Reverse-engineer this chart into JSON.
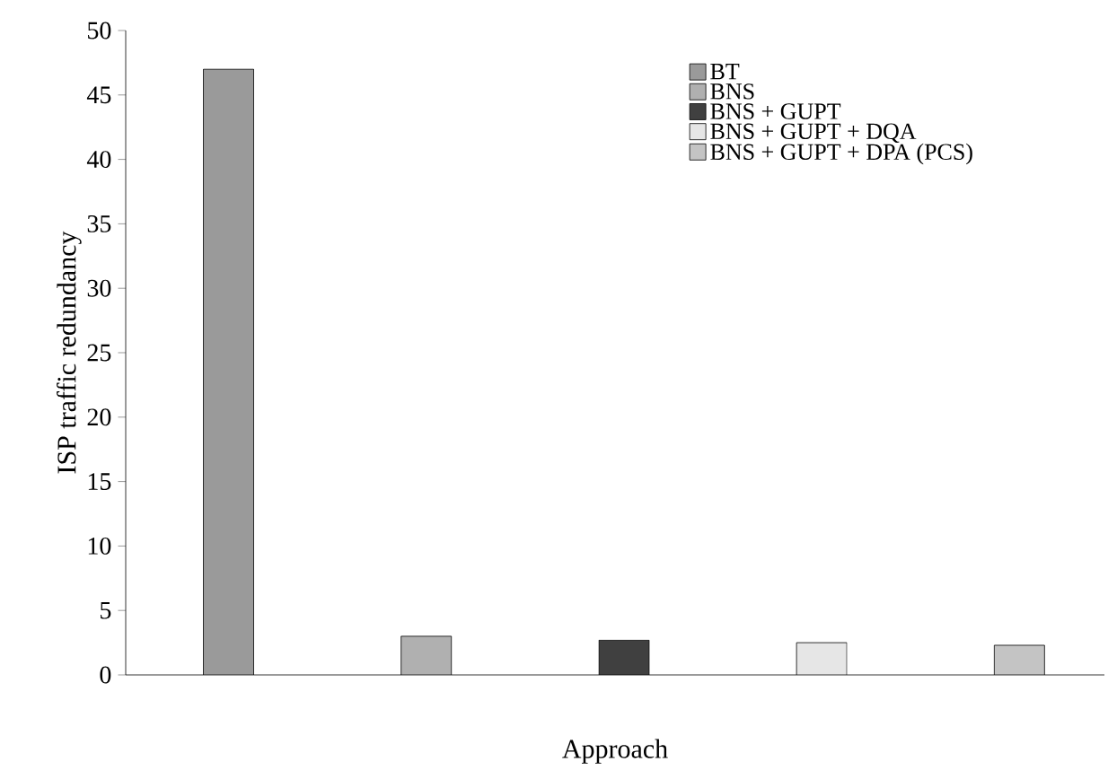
{
  "chart_data": {
    "type": "bar",
    "xlabel": "Approach",
    "ylabel": "ISP traffic redundancy",
    "categories": [
      null,
      null,
      null,
      null,
      null
    ],
    "series": [
      {
        "name": "BT",
        "color": "#9a9a9a",
        "values": [
          47,
          null,
          null,
          null,
          null
        ]
      },
      {
        "name": "BNS",
        "color": "#b0b0b0",
        "values": [
          null,
          3.0,
          null,
          null,
          null
        ]
      },
      {
        "name": "BNS + GUPT",
        "color": "#404040",
        "values": [
          null,
          null,
          2.7,
          null,
          null
        ]
      },
      {
        "name": "BNS + GUPT + DQA",
        "color": "#e6e6e6",
        "values": [
          null,
          null,
          null,
          2.5,
          null
        ]
      },
      {
        "name": "BNS + GUPT + DPA (PCS)",
        "color": "#c4c4c4",
        "values": [
          null,
          null,
          null,
          null,
          2.3
        ]
      }
    ],
    "ylim": [
      0,
      50
    ],
    "yticks": [
      0,
      5,
      10,
      15,
      20,
      25,
      30,
      35,
      40,
      45,
      50
    ],
    "legend": "top right",
    "grid": false
  }
}
